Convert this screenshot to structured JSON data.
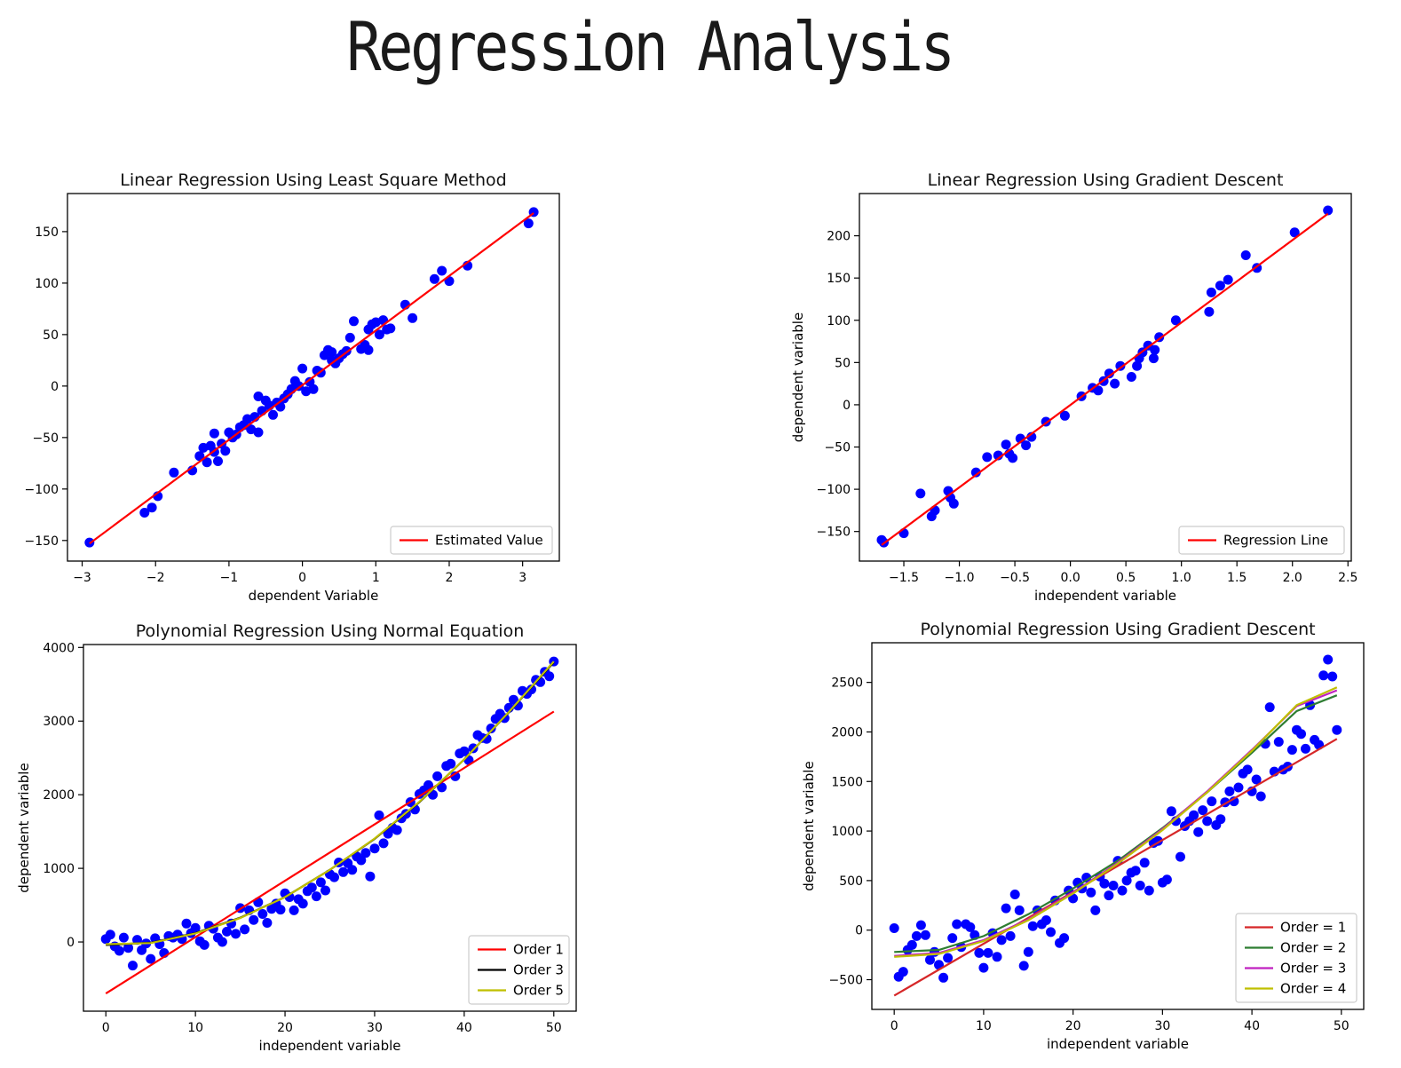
{
  "page": {
    "title": "Regression Analysis"
  },
  "chart_data": [
    {
      "type": "scatter",
      "title": "Linear Regression Using Least Square Method",
      "xlabel": "dependent Variable",
      "ylabel": "",
      "xlim": [
        -3.2,
        3.5
      ],
      "ylim": [
        -170,
        187
      ],
      "xticks": [
        -3,
        -2,
        -1,
        0,
        1,
        2,
        3
      ],
      "xtick_labels": [
        "−3",
        "−2",
        "−1",
        "0",
        "1",
        "2",
        "3"
      ],
      "yticks": [
        -150,
        -100,
        -50,
        0,
        50,
        100,
        150
      ],
      "ytick_labels": [
        "−150",
        "−100",
        "−50",
        "0",
        "50",
        "100",
        "150"
      ],
      "legend_position": "lower-right",
      "series": [
        {
          "name": "points",
          "kind": "scatter",
          "color": "#0000ff",
          "x": [
            -2.9,
            -2.15,
            -2.05,
            -1.97,
            -1.75,
            -1.5,
            -1.4,
            -1.35,
            -1.3,
            -1.25,
            -1.2,
            -1.15,
            -1.1,
            -1.05,
            -1.0,
            -0.95,
            -0.9,
            -0.85,
            -0.8,
            -0.75,
            -0.7,
            -0.65,
            -0.6,
            -0.55,
            -0.5,
            -0.45,
            -0.4,
            -0.35,
            -0.3,
            -0.25,
            -0.2,
            -0.15,
            -0.1,
            -0.05,
            0.0,
            0.05,
            0.1,
            0.15,
            0.2,
            0.25,
            0.3,
            0.35,
            0.4,
            0.45,
            0.5,
            0.55,
            0.6,
            0.65,
            0.7,
            0.8,
            0.85,
            0.9,
            0.95,
            1.0,
            1.05,
            1.1,
            1.15,
            1.2,
            1.4,
            1.5,
            1.8,
            1.9,
            2.0,
            2.25,
            3.08,
            3.15,
            -1.2,
            -0.6,
            0.4,
            0.9
          ],
          "y": [
            -152,
            -123,
            -118,
            -107,
            -84,
            -82,
            -68,
            -60,
            -74,
            -58,
            -46,
            -73,
            -56,
            -63,
            -45,
            -50,
            -47,
            -40,
            -38,
            -32,
            -42,
            -30,
            -10,
            -24,
            -14,
            -19,
            -28,
            -16,
            -20,
            -12,
            -8,
            -3,
            5,
            0,
            17,
            -5,
            4,
            -3,
            15,
            13,
            30,
            35,
            33,
            22,
            27,
            31,
            34,
            47,
            63,
            36,
            40,
            35,
            60,
            62,
            50,
            64,
            55,
            56,
            79,
            66,
            104,
            112,
            102,
            117,
            158,
            169,
            -64,
            -45,
            25,
            55
          ]
        },
        {
          "name": "Estimated Value",
          "kind": "line",
          "color": "#ff0000",
          "x": [
            -2.9,
            3.15
          ],
          "y": [
            -153,
            168
          ]
        }
      ]
    },
    {
      "type": "scatter",
      "title": "Linear Regression Using Gradient Descent",
      "xlabel": "independent variable",
      "ylabel": "dependent variable",
      "xlim": [
        -1.9,
        2.53
      ],
      "ylim": [
        -185,
        250
      ],
      "xticks": [
        -1.5,
        -1.0,
        -0.5,
        0.0,
        0.5,
        1.0,
        1.5,
        2.0,
        2.5
      ],
      "xtick_labels": [
        "−1.5",
        "−1.0",
        "−0.5",
        "0.0",
        "0.5",
        "1.0",
        "1.5",
        "2.0",
        "2.5"
      ],
      "yticks": [
        -150,
        -100,
        -50,
        0,
        50,
        100,
        150,
        200
      ],
      "ytick_labels": [
        "−150",
        "−100",
        "−50",
        "0",
        "50",
        "100",
        "150",
        "200"
      ],
      "legend_position": "lower-right",
      "series": [
        {
          "name": "points",
          "kind": "scatter",
          "color": "#0000ff",
          "x": [
            -1.7,
            -1.5,
            -1.35,
            -1.25,
            -1.22,
            -1.1,
            -1.08,
            -1.05,
            -0.85,
            -0.75,
            -0.65,
            -0.58,
            -0.55,
            -0.52,
            -0.45,
            -0.4,
            -0.35,
            -0.22,
            -0.05,
            0.1,
            0.2,
            0.3,
            0.35,
            0.4,
            0.45,
            0.6,
            0.62,
            0.65,
            0.7,
            0.75,
            0.76,
            0.8,
            0.95,
            1.25,
            1.27,
            1.35,
            1.42,
            1.58,
            1.68,
            2.02,
            2.32,
            -1.68,
            0.55,
            0.25
          ],
          "y": [
            -160,
            -152,
            -105,
            -132,
            -125,
            -102,
            -110,
            -117,
            -80,
            -62,
            -60,
            -47,
            -58,
            -63,
            -40,
            -48,
            -38,
            -20,
            -13,
            10,
            20,
            28,
            37,
            25,
            46,
            46,
            55,
            62,
            70,
            55,
            65,
            80,
            100,
            110,
            133,
            141,
            148,
            177,
            162,
            204,
            230,
            -163,
            33,
            17
          ]
        },
        {
          "name": "Regression Line",
          "kind": "line",
          "color": "#ff0000",
          "x": [
            -1.7,
            2.32
          ],
          "y": [
            -166,
            226
          ]
        }
      ]
    },
    {
      "type": "scatter",
      "title": "Polynomial Regression Using Normal Equation",
      "xlabel": "independent variable",
      "ylabel": "dependent variable",
      "xlim": [
        -2.5,
        52.5
      ],
      "ylim": [
        -940,
        4040
      ],
      "xticks": [
        0,
        10,
        20,
        30,
        40,
        50
      ],
      "xtick_labels": [
        "0",
        "10",
        "20",
        "30",
        "40",
        "50"
      ],
      "yticks": [
        0,
        1000,
        2000,
        3000,
        4000
      ],
      "ytick_labels": [
        "0",
        "1000",
        "2000",
        "3000",
        "4000"
      ],
      "legend_position": "lower-right",
      "series": [
        {
          "name": "points",
          "kind": "scatter",
          "color": "#0000ff",
          "x": [
            0,
            0.5,
            1,
            1.5,
            2,
            2.5,
            3,
            3.5,
            4,
            4.5,
            5,
            5.5,
            6,
            6.5,
            7,
            7.5,
            8,
            8.5,
            9,
            9.5,
            10,
            10.5,
            11,
            11.5,
            12,
            12.5,
            13,
            13.5,
            14,
            14.5,
            15,
            15.5,
            16,
            16.5,
            17,
            17.5,
            18,
            18.5,
            19,
            19.5,
            20,
            20.5,
            21,
            21.5,
            22,
            22.5,
            23,
            23.5,
            24,
            24.5,
            25,
            25.5,
            26,
            26.5,
            27,
            27.5,
            28,
            28.5,
            29,
            29.5,
            30,
            30.5,
            31,
            31.5,
            32,
            32.5,
            33,
            33.5,
            34,
            34.5,
            35,
            35.5,
            36,
            36.5,
            37,
            37.5,
            38,
            38.5,
            39,
            39.5,
            40,
            40.5,
            41,
            41.5,
            42,
            42.5,
            43,
            43.5,
            44,
            44.5,
            45,
            45.5,
            46,
            46.5,
            47,
            47.5,
            48,
            48.5,
            49,
            49.5,
            50
          ],
          "y": [
            40,
            100,
            -60,
            -120,
            60,
            -80,
            -320,
            30,
            -110,
            -20,
            -230,
            50,
            -30,
            -150,
            80,
            60,
            100,
            40,
            250,
            120,
            190,
            10,
            -40,
            220,
            180,
            60,
            0,
            140,
            250,
            110,
            460,
            170,
            430,
            300,
            540,
            380,
            260,
            450,
            520,
            440,
            660,
            610,
            430,
            580,
            520,
            690,
            740,
            620,
            810,
            700,
            920,
            880,
            1080,
            950,
            1070,
            980,
            1160,
            1110,
            1210,
            890,
            1270,
            1720,
            1340,
            1470,
            1550,
            1520,
            1680,
            1740,
            1900,
            1800,
            2010,
            2060,
            2130,
            2000,
            2250,
            2100,
            2390,
            2420,
            2250,
            2560,
            2590,
            2470,
            2630,
            2810,
            2770,
            2760,
            2900,
            3030,
            3100,
            3040,
            3180,
            3290,
            3210,
            3410,
            3370,
            3430,
            3560,
            3530,
            3670,
            3610,
            3810
          ]
        },
        {
          "name": "Order 1",
          "kind": "line",
          "color": "#ff0000",
          "x": [
            0,
            50
          ],
          "y": [
            -700,
            3130
          ]
        },
        {
          "name": "Order 3",
          "kind": "line",
          "color": "#000000",
          "x": [
            0,
            5,
            10,
            15,
            20,
            25,
            30,
            35,
            40,
            45,
            50
          ],
          "y": [
            -40,
            -10,
            120,
            330,
            610,
            980,
            1400,
            1900,
            2480,
            3120,
            3800
          ]
        },
        {
          "name": "Order 5",
          "kind": "line",
          "color": "#bfbf00",
          "x": [
            0,
            5,
            10,
            15,
            20,
            25,
            30,
            35,
            40,
            45,
            50
          ],
          "y": [
            -30,
            -15,
            115,
            325,
            610,
            980,
            1405,
            1905,
            2480,
            3125,
            3810
          ]
        }
      ]
    },
    {
      "type": "scatter",
      "title": "Polynomial Regression Using Gradient Descent",
      "xlabel": "independent variable",
      "ylabel": "dependent variable",
      "xlim": [
        -2.5,
        52.5
      ],
      "ylim": [
        -800,
        2900
      ],
      "xticks": [
        0,
        10,
        20,
        30,
        40,
        50
      ],
      "xtick_labels": [
        "0",
        "10",
        "20",
        "30",
        "40",
        "50"
      ],
      "yticks": [
        -500,
        0,
        500,
        1000,
        1500,
        2000,
        2500
      ],
      "ytick_labels": [
        "−500",
        "0",
        "500",
        "1000",
        "1500",
        "2000",
        "2500"
      ],
      "legend_position": "lower-right",
      "series": [
        {
          "name": "points",
          "kind": "scatter",
          "color": "#0000ff",
          "x": [
            0,
            0.5,
            1,
            1.5,
            2,
            2.5,
            3,
            3.5,
            4,
            4.5,
            5,
            5.5,
            6,
            6.5,
            7,
            7.5,
            8,
            8.5,
            9,
            9.5,
            10,
            10.5,
            11,
            11.5,
            12,
            12.5,
            13,
            13.5,
            14,
            14.5,
            15,
            15.5,
            16,
            16.5,
            17,
            17.5,
            18,
            18.5,
            19,
            19.5,
            20,
            20.5,
            21,
            21.5,
            22,
            22.5,
            23,
            23.5,
            24,
            24.5,
            25,
            25.5,
            26,
            26.5,
            27,
            27.5,
            28,
            28.5,
            29,
            29.5,
            30,
            30.5,
            31,
            31.5,
            32,
            32.5,
            33,
            33.5,
            34,
            34.5,
            35,
            35.5,
            36,
            36.5,
            37,
            37.5,
            38,
            38.5,
            39,
            39.5,
            40,
            40.5,
            41,
            41.5,
            42,
            42.5,
            43,
            43.5,
            44,
            44.5,
            45,
            45.5,
            46,
            46.5,
            47,
            47.5,
            48,
            48.5,
            49,
            49.5
          ],
          "y": [
            20,
            -470,
            -420,
            -200,
            -150,
            -60,
            50,
            -50,
            -300,
            -220,
            -350,
            -480,
            -280,
            -80,
            60,
            -170,
            60,
            30,
            -50,
            -230,
            -380,
            -230,
            -30,
            -270,
            -100,
            220,
            -60,
            360,
            200,
            -360,
            -220,
            40,
            200,
            60,
            100,
            -20,
            300,
            -130,
            -80,
            400,
            320,
            480,
            420,
            530,
            380,
            200,
            540,
            470,
            350,
            450,
            700,
            400,
            500,
            580,
            600,
            450,
            680,
            400,
            880,
            900,
            480,
            510,
            1200,
            1100,
            740,
            1050,
            1100,
            1160,
            990,
            1210,
            1100,
            1300,
            1060,
            1120,
            1290,
            1400,
            1300,
            1440,
            1580,
            1620,
            1400,
            1520,
            1350,
            1880,
            2250,
            1600,
            1900,
            1620,
            1650,
            1820,
            2020,
            1980,
            1830,
            2270,
            1920,
            1870,
            2570,
            2730,
            2560,
            2020
          ],
          "note": "approximate"
        },
        {
          "name": "Order = 1",
          "kind": "line",
          "color": "#d62728",
          "x": [
            0,
            49.5
          ],
          "y": [
            -660,
            1930
          ]
        },
        {
          "name": "Order = 2",
          "kind": "line",
          "color": "#2e7d32",
          "x": [
            0,
            5,
            10,
            15,
            20,
            25,
            30,
            35,
            40,
            45,
            49.5
          ],
          "y": [
            -220,
            -200,
            -60,
            160,
            420,
            700,
            1030,
            1390,
            1790,
            2210,
            2370
          ]
        },
        {
          "name": "Order = 3",
          "kind": "line",
          "color": "#c020c0",
          "x": [
            0,
            5,
            10,
            15,
            20,
            25,
            30,
            35,
            40,
            45,
            49.5
          ],
          "y": [
            -260,
            -230,
            -100,
            110,
            380,
            680,
            1020,
            1400,
            1820,
            2260,
            2420
          ]
        },
        {
          "name": "Order = 4",
          "kind": "line",
          "color": "#bfbf00",
          "x": [
            0,
            5,
            10,
            15,
            20,
            25,
            30,
            35,
            40,
            45,
            49.5
          ],
          "y": [
            -270,
            -240,
            -110,
            100,
            370,
            670,
            1010,
            1390,
            1810,
            2270,
            2450
          ]
        }
      ]
    }
  ]
}
